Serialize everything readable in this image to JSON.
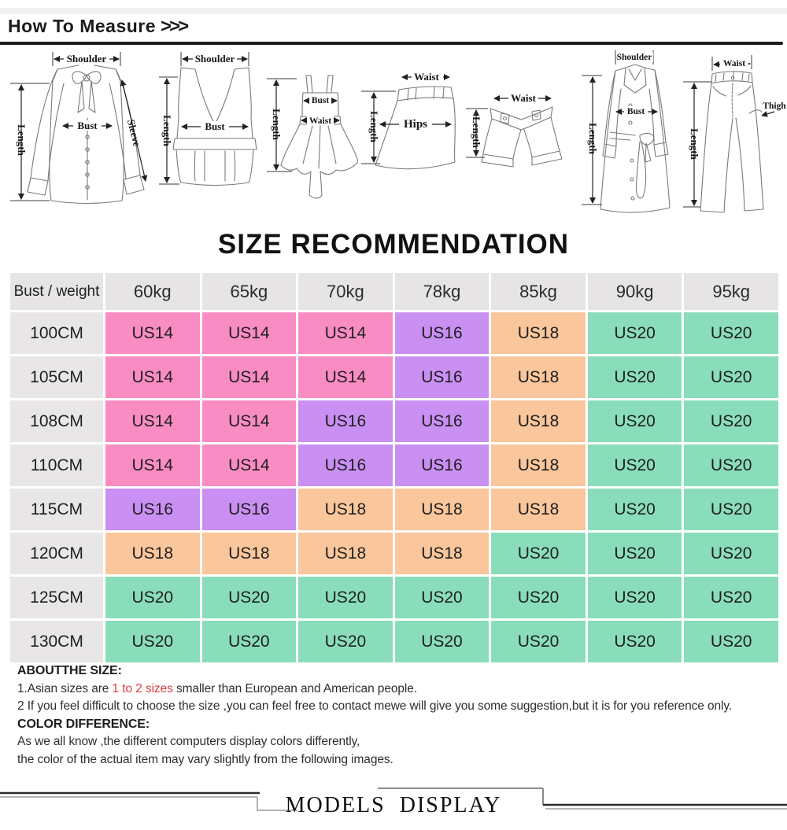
{
  "header": {
    "title": "How To Measure",
    "arrows": ">>>"
  },
  "measure_diagrams": {
    "items": [
      {
        "name": "blouse",
        "labels": {
          "shoulder": "Shoulder",
          "length": "Length",
          "bust": "Bust",
          "sleeve": "Sleeve"
        }
      },
      {
        "name": "vest",
        "labels": {
          "shoulder": "Shoulder",
          "length": "Length",
          "bust": "Bust"
        }
      },
      {
        "name": "dress",
        "labels": {
          "bust": "Bust",
          "waist": "Waist",
          "length": "Length"
        }
      },
      {
        "name": "skirt",
        "labels": {
          "waist": "Waist",
          "hips": "Hips",
          "length": "Length"
        }
      },
      {
        "name": "shorts",
        "labels": {
          "waist": "Waist",
          "length": "Length"
        }
      },
      {
        "name": "coat",
        "labels": {
          "shoulder": "Shoulder",
          "bust": "Bust",
          "length": "Length"
        }
      },
      {
        "name": "pants",
        "labels": {
          "waist": "Waist",
          "length": "Length",
          "thigh": "Thigh"
        }
      }
    ]
  },
  "size_table": {
    "title": "SIZE RECOMMENDATION",
    "corner_label": "Bust / weight",
    "column_headers": [
      "60kg",
      "65kg",
      "70kg",
      "78kg",
      "85kg",
      "90kg",
      "95kg"
    ],
    "rows": [
      {
        "label": "100CM",
        "cells": [
          "US14",
          "US14",
          "US14",
          "US16",
          "US18",
          "US20",
          "US20"
        ]
      },
      {
        "label": "105CM",
        "cells": [
          "US14",
          "US14",
          "US14",
          "US16",
          "US18",
          "US20",
          "US20"
        ]
      },
      {
        "label": "108CM",
        "cells": [
          "US14",
          "US14",
          "US16",
          "US16",
          "US18",
          "US20",
          "US20"
        ]
      },
      {
        "label": "110CM",
        "cells": [
          "US14",
          "US14",
          "US16",
          "US16",
          "US18",
          "US20",
          "US20"
        ]
      },
      {
        "label": "115CM",
        "cells": [
          "US16",
          "US16",
          "US18",
          "US18",
          "US18",
          "US20",
          "US20"
        ]
      },
      {
        "label": "120CM",
        "cells": [
          "US18",
          "US18",
          "US18",
          "US18",
          "US20",
          "US20",
          "US20"
        ]
      },
      {
        "label": "125CM",
        "cells": [
          "US20",
          "US20",
          "US20",
          "US20",
          "US20",
          "US20",
          "US20"
        ]
      },
      {
        "label": "130CM",
        "cells": [
          "US20",
          "US20",
          "US20",
          "US20",
          "US20",
          "US20",
          "US20"
        ]
      }
    ],
    "size_colors": {
      "US14": "#f98cc3",
      "US16": "#c98ff2",
      "US18": "#fac69b",
      "US20": "#8addbb"
    },
    "header_bg": "#e6e4e5",
    "label_bg": "#e8e6e7"
  },
  "notes": {
    "about_title": "ABOUTTHE SIZE:",
    "note1_prefix": "1.Asian sizes are ",
    "note1_highlight": "1 to 2 sizes",
    "note1_suffix": " smaller than European and American people.",
    "note2": "2 If you feel difficult to choose the size ,you can feel free to contact mewe will give you some suggestion,but it is for you reference only.",
    "color_title": "COLOR DIFFERENCE:",
    "color_note1": "As we all know ,the different computers display colors differently,",
    "color_note2": "the color of the actual item may vary slightly from the following images.",
    "highlight_color": "#e03b3b"
  },
  "footer": {
    "banner_title": "MODELS DISPLAY"
  }
}
